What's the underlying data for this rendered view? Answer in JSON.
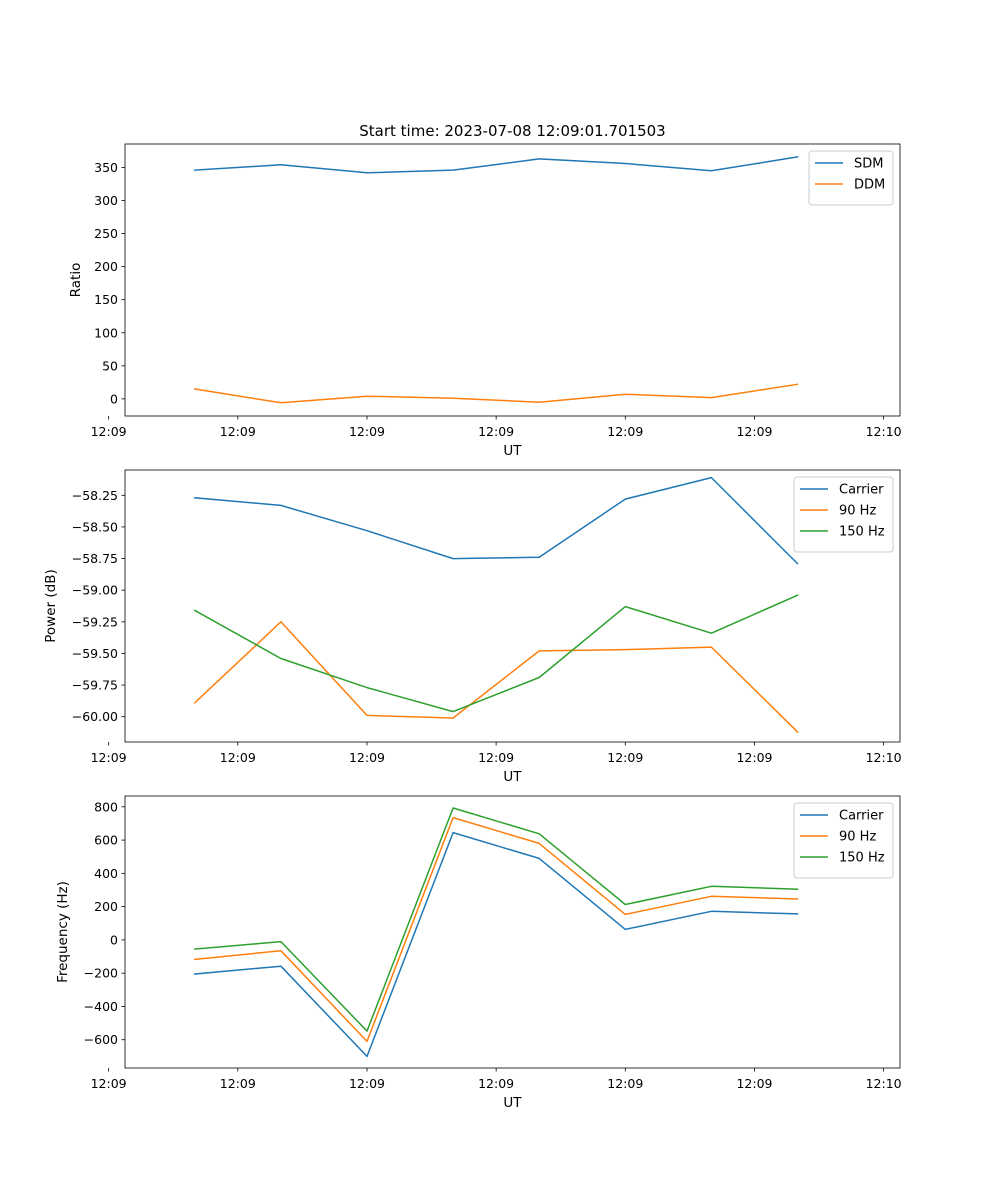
{
  "title": "Start time: 2023-07-08 12:09:01.701503",
  "colors": {
    "blue": "#1f77b4",
    "orange": "#ff7f0e",
    "green": "#2ca02c",
    "axis": "#000000",
    "legend_border": "#cccccc"
  },
  "chart_data": [
    {
      "type": "line",
      "title": "Start time: 2023-07-08 12:09:01.701503",
      "xlabel": "UT",
      "ylabel": "Ratio",
      "x": [
        1,
        2,
        3,
        4,
        5,
        6,
        7,
        8
      ],
      "xlim": [
        0.19,
        9.19
      ],
      "ylim": [
        -25.9,
        385.5
      ],
      "xticks": [
        {
          "value": 0.0,
          "label": "12:09"
        },
        {
          "value": 1.5,
          "label": "12:09"
        },
        {
          "value": 3.0,
          "label": "12:09"
        },
        {
          "value": 4.5,
          "label": "12:09"
        },
        {
          "value": 6.0,
          "label": "12:09"
        },
        {
          "value": 7.5,
          "label": "12:09"
        },
        {
          "value": 9.0,
          "label": "12:10"
        }
      ],
      "yticks": [
        {
          "value": 0,
          "label": "0"
        },
        {
          "value": 50,
          "label": "50"
        },
        {
          "value": 100,
          "label": "100"
        },
        {
          "value": 150,
          "label": "150"
        },
        {
          "value": 200,
          "label": "200"
        },
        {
          "value": 250,
          "label": "250"
        },
        {
          "value": 300,
          "label": "300"
        },
        {
          "value": 350,
          "label": "350"
        }
      ],
      "legend_position": "top-right",
      "series": [
        {
          "name": "SDM",
          "color": "#1f77b4",
          "values": [
            346,
            354,
            342,
            346,
            363,
            356,
            345,
            366
          ]
        },
        {
          "name": "DDM",
          "color": "#ff7f0e",
          "values": [
            15,
            -6,
            4,
            1,
            -5,
            7,
            2,
            22
          ]
        }
      ]
    },
    {
      "type": "line",
      "title": "",
      "xlabel": "UT",
      "ylabel": "Power (dB)",
      "x": [
        1,
        2,
        3,
        4,
        5,
        6,
        7,
        8
      ],
      "xlim": [
        0.19,
        9.19
      ],
      "ylim": [
        -60.2,
        -58.05
      ],
      "xticks": [
        {
          "value": 0.0,
          "label": "12:09"
        },
        {
          "value": 1.5,
          "label": "12:09"
        },
        {
          "value": 3.0,
          "label": "12:09"
        },
        {
          "value": 4.5,
          "label": "12:09"
        },
        {
          "value": 6.0,
          "label": "12:09"
        },
        {
          "value": 7.5,
          "label": "12:09"
        },
        {
          "value": 9.0,
          "label": "12:10"
        }
      ],
      "yticks": [
        {
          "value": -60.0,
          "label": "−60.00"
        },
        {
          "value": -59.75,
          "label": "−59.75"
        },
        {
          "value": -59.5,
          "label": "−59.50"
        },
        {
          "value": -59.25,
          "label": "−59.25"
        },
        {
          "value": -59.0,
          "label": "−59.00"
        },
        {
          "value": -58.75,
          "label": "−58.75"
        },
        {
          "value": -58.5,
          "label": "−58.50"
        },
        {
          "value": -58.25,
          "label": "−58.25"
        }
      ],
      "legend_position": "top-right",
      "series": [
        {
          "name": "Carrier",
          "color": "#1f77b4",
          "values": [
            -58.27,
            -58.33,
            -58.53,
            -58.75,
            -58.74,
            -58.28,
            -58.11,
            -58.79
          ]
        },
        {
          "name": "90 Hz",
          "color": "#ff7f0e",
          "values": [
            -59.89,
            -59.25,
            -59.99,
            -60.01,
            -59.48,
            -59.47,
            -59.45,
            -60.12
          ]
        },
        {
          "name": "150 Hz",
          "color": "#2ca02c",
          "values": [
            -59.16,
            -59.54,
            -59.77,
            -59.96,
            -59.69,
            -59.13,
            -59.34,
            -59.04
          ]
        }
      ]
    },
    {
      "type": "line",
      "title": "",
      "xlabel": "UT",
      "ylabel": "Frequency (Hz)",
      "x": [
        1,
        2,
        3,
        4,
        5,
        6,
        7,
        8
      ],
      "xlim": [
        0.19,
        9.19
      ],
      "ylim": [
        -770,
        865
      ],
      "xticks": [
        {
          "value": 0.0,
          "label": "12:09"
        },
        {
          "value": 1.5,
          "label": "12:09"
        },
        {
          "value": 3.0,
          "label": "12:09"
        },
        {
          "value": 4.5,
          "label": "12:09"
        },
        {
          "value": 6.0,
          "label": "12:09"
        },
        {
          "value": 7.5,
          "label": "12:09"
        },
        {
          "value": 9.0,
          "label": "12:10"
        }
      ],
      "yticks": [
        {
          "value": -600,
          "label": "−600"
        },
        {
          "value": -400,
          "label": "−400"
        },
        {
          "value": -200,
          "label": "−200"
        },
        {
          "value": 0,
          "label": "0"
        },
        {
          "value": 200,
          "label": "200"
        },
        {
          "value": 400,
          "label": "400"
        },
        {
          "value": 600,
          "label": "600"
        },
        {
          "value": 800,
          "label": "800"
        }
      ],
      "legend_position": "top-right",
      "series": [
        {
          "name": "Carrier",
          "color": "#1f77b4",
          "values": [
            -205,
            -158,
            -700,
            645,
            490,
            63,
            172,
            156
          ]
        },
        {
          "name": "90 Hz",
          "color": "#ff7f0e",
          "values": [
            -117,
            -65,
            -610,
            735,
            580,
            153,
            262,
            246
          ]
        },
        {
          "name": "150 Hz",
          "color": "#2ca02c",
          "values": [
            -55,
            -10,
            -548,
            793,
            638,
            213,
            322,
            305
          ]
        }
      ]
    }
  ]
}
